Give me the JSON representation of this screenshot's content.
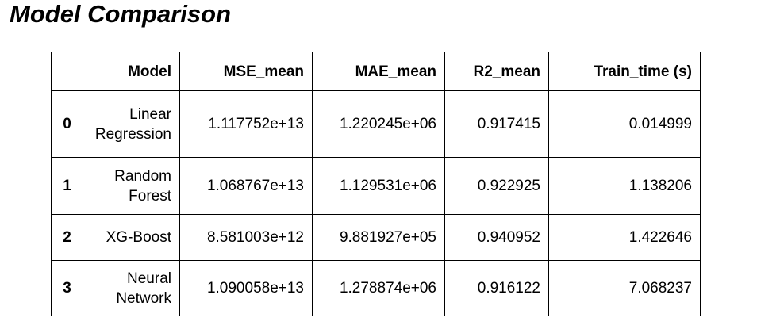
{
  "title": "Model Comparison",
  "table": {
    "columns": [
      "",
      "Model",
      "MSE_mean",
      "MAE_mean",
      "R2_mean",
      "Train_time (s)"
    ],
    "rows": [
      {
        "index": "0",
        "model_line1": "Linear",
        "model_line2": "Regression",
        "mse_mean": "1.117752e+13",
        "mae_mean": "1.220245e+06",
        "r2_mean": "0.917415",
        "train_time": "0.014999"
      },
      {
        "index": "1",
        "model_line1": "Random",
        "model_line2": "Forest",
        "mse_mean": "1.068767e+13",
        "mae_mean": "1.129531e+06",
        "r2_mean": "0.922925",
        "train_time": "1.138206"
      },
      {
        "index": "2",
        "model_line1": "XG-Boost",
        "model_line2": "",
        "mse_mean": "8.581003e+12",
        "mae_mean": "9.881927e+05",
        "r2_mean": "0.940952",
        "train_time": "1.422646"
      },
      {
        "index": "3",
        "model_line1": "Neural",
        "model_line2": "Network",
        "mse_mean": "1.090058e+13",
        "mae_mean": "1.278874e+06",
        "r2_mean": "0.916122",
        "train_time": "7.068237"
      }
    ]
  }
}
